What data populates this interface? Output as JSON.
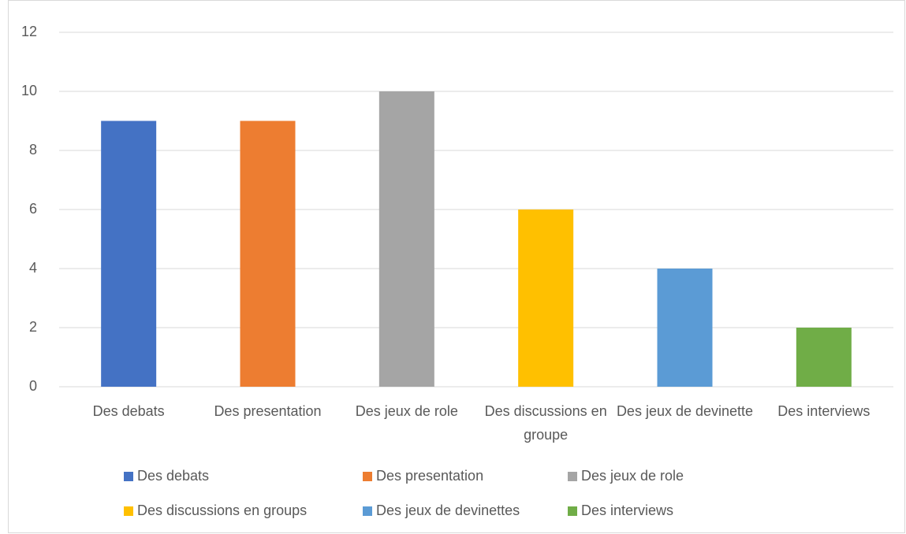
{
  "chart_data": {
    "type": "bar",
    "categories": [
      "Des debats",
      "Des presentation",
      "Des jeux de role",
      "Des discussions en groupe",
      "Des jeux de devinette",
      "Des interviews"
    ],
    "values": [
      9,
      9,
      10,
      6,
      4,
      2
    ],
    "colors": [
      "#4472c4",
      "#ed7d31",
      "#a5a5a5",
      "#ffc000",
      "#5b9bd5",
      "#70ad47"
    ],
    "legend": [
      "Des debats",
      "Des presentation",
      "Des jeux de role",
      "Des discussions en groups",
      "Des jeux de devinettes",
      "Des interviews"
    ],
    "ylim": [
      0,
      12
    ],
    "yticks": [
      0,
      2,
      4,
      6,
      8,
      10,
      12
    ],
    "grid": true
  }
}
